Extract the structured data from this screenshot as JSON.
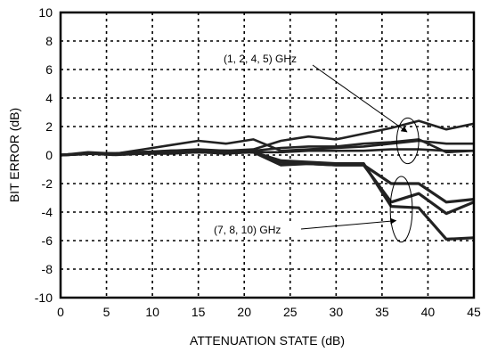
{
  "chart_data": {
    "type": "line",
    "xlabel": "ATTENUATION STATE (dB)",
    "ylabel": "BIT ERROR (dB)",
    "xlim": [
      0,
      45
    ],
    "ylim": [
      -10,
      10
    ],
    "xticks": [
      0,
      5,
      10,
      15,
      20,
      25,
      30,
      35,
      40,
      45
    ],
    "yticks": [
      -10,
      -8,
      -6,
      -4,
      -2,
      0,
      2,
      4,
      6,
      8,
      10
    ],
    "grid": true,
    "x": [
      0,
      3,
      6,
      9,
      12,
      15,
      18,
      21,
      24,
      27,
      30,
      33,
      36,
      39,
      42,
      45
    ],
    "series": [
      {
        "group": "low",
        "stroke": 2.6,
        "values": [
          0,
          0.2,
          0.1,
          0.4,
          0.7,
          1.0,
          0.8,
          1.1,
          0.3,
          0.4,
          0.5,
          0.6,
          0.8,
          1.0,
          0.8,
          0.8
        ]
      },
      {
        "group": "low",
        "stroke": 2.6,
        "values": [
          0,
          0.1,
          0.1,
          0.2,
          0.3,
          0.4,
          0.3,
          0.4,
          1.0,
          1.3,
          1.1,
          1.5,
          1.9,
          2.4,
          1.8,
          2.2
        ]
      },
      {
        "group": "low",
        "stroke": 2.6,
        "values": [
          0,
          0.1,
          0.1,
          0.1,
          0.2,
          0.3,
          0.2,
          0.3,
          0.5,
          0.6,
          0.6,
          0.8,
          0.9,
          1.1,
          0.2,
          0.3
        ]
      },
      {
        "group": "low",
        "stroke": 2.6,
        "values": [
          0,
          0.1,
          0.0,
          0.1,
          0.1,
          0.2,
          0.1,
          0.2,
          0.2,
          0.3,
          0.3,
          0.3,
          0.4,
          0.4,
          0.3,
          0.3
        ]
      },
      {
        "group": "high",
        "stroke": 3.2,
        "values": [
          0,
          0.1,
          0.1,
          0.2,
          0.2,
          0.3,
          0.2,
          0.2,
          -0.5,
          -0.6,
          -0.7,
          -0.7,
          -2.0,
          -2.0,
          -3.3,
          -3.1
        ]
      },
      {
        "group": "high",
        "stroke": 3.2,
        "values": [
          0,
          0.1,
          0.1,
          0.2,
          0.3,
          0.3,
          0.3,
          0.2,
          -0.7,
          -0.6,
          -0.7,
          -0.7,
          -3.3,
          -2.7,
          -4.1,
          -3.3
        ]
      },
      {
        "group": "high",
        "stroke": 3.2,
        "values": [
          0,
          0.1,
          0.1,
          0.2,
          0.2,
          0.2,
          0.2,
          0.2,
          -0.4,
          -0.5,
          -0.6,
          -0.6,
          -3.6,
          -3.7,
          -5.9,
          -5.8
        ]
      }
    ],
    "annotations": [
      {
        "text": "(1, 2, 4, 5) GHz",
        "target": [
          38.3,
          1.0
        ],
        "ellipse": {
          "cx": 37.8,
          "cy": 1.0,
          "rx": 1.2,
          "ry": 1.6
        }
      },
      {
        "text": "(7, 8, 10) GHz",
        "target": [
          37.1,
          -3.6
        ],
        "ellipse": {
          "cx": 37.1,
          "cy": -3.8,
          "rx": 1.2,
          "ry": 2.3
        }
      }
    ]
  }
}
